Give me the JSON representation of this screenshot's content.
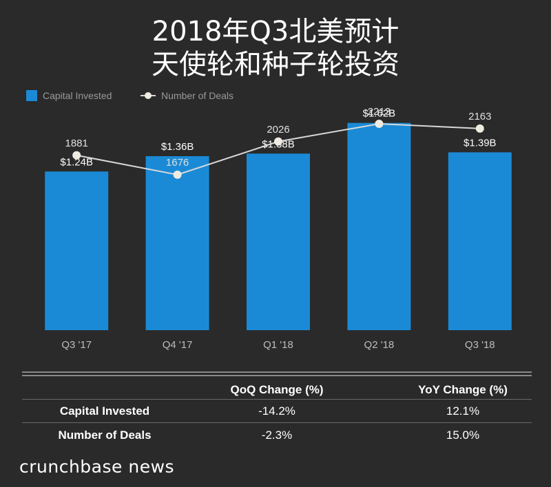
{
  "title": {
    "line1": "2018年Q3北美预计",
    "line2": "天使轮和种子轮投资"
  },
  "legend": {
    "bar_label": "Capital Invested",
    "line_label": "Number of Deals"
  },
  "colors": {
    "bar": "#1a8ad6",
    "line": "#d8d8d8",
    "marker": "#f0ebe0",
    "background": "#2a2a2a",
    "text_muted": "#9a9a9a"
  },
  "chart_data": {
    "type": "bar",
    "categories": [
      "Q3 '17",
      "Q4 '17",
      "Q1 '18",
      "Q2 '18",
      "Q3 '18"
    ],
    "series": [
      {
        "name": "Capital Invested",
        "type": "bar",
        "values": [
          1.24,
          1.36,
          1.38,
          1.62,
          1.39
        ],
        "labels": [
          "$1.24B",
          "$1.36B",
          "$1.38B",
          "$1.62B",
          "$1.39B"
        ]
      },
      {
        "name": "Number of Deals",
        "type": "line",
        "values": [
          1881,
          1676,
          2026,
          2213,
          2163
        ],
        "labels": [
          "1881",
          "1676",
          "2026",
          "2213",
          "2163"
        ]
      }
    ],
    "title": "2018年Q3北美预计天使轮和种子轮投资",
    "legend_position": "top-left",
    "grid": false
  },
  "summary_table": {
    "headers": [
      "",
      "QoQ Change (%)",
      "YoY Change (%)"
    ],
    "rows": [
      {
        "label": "Capital Invested",
        "qoq": "-14.2%",
        "yoy": "12.1%"
      },
      {
        "label": "Number of Deals",
        "qoq": "-2.3%",
        "yoy": "15.0%"
      }
    ]
  },
  "brand": "crunchbase news"
}
